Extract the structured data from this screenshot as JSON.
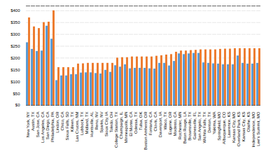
{
  "chart_data": {
    "type": "bar",
    "categories": [
      "New York, NY",
      "Austin, TX",
      "San Jose, CA",
      "Los Angeles, CA",
      "San Diego, CA",
      "Philadelphia, PA",
      "Lindon, OR",
      "Chico, CA",
      "Sioux Falls, SD",
      "Killeen, TX",
      "Las Cruces, NM",
      "Lubbock, TX",
      "Midland, TX",
      "Huntsville, AL",
      "Reno, NV",
      "Sparks, NV",
      "Sioux City, IA",
      "Toledo, OH",
      "College Station, TX",
      "Champaign, IL",
      "Minneapolis, MN",
      "El Monte, CA",
      "Odessa, TX",
      "Tulsa, OK",
      "Boston Amherst, OR",
      "Fontana, CA",
      "Clovis, CA",
      "Davenport, IA",
      "Waco, TX",
      "Eugene, OR",
      "Modesto, CA",
      "Rochester, MN",
      "Baton Rouge, LA",
      "Brownsville, TX",
      "Gainesville, FL",
      "San Angelo, TX",
      "Wichita Falls, TX",
      "Denton, TX",
      "Yakima, WA",
      "Springfield, MO",
      "Albuquerque, CO",
      "Lawrence, KS",
      "Kansas City, MO",
      "Overland Park, KS",
      "Kansas City, KS",
      "Olathe, KS",
      "Independence, MO",
      "Lee's Summit, MO"
    ],
    "series": [
      {
        "color": "#5b9bd5",
        "values": [
          265,
          237,
          228,
          230,
          335,
          280,
          105,
          125,
          125,
          130,
          130,
          137,
          138,
          138,
          135,
          133,
          148,
          140,
          168,
          162,
          172,
          155,
          157,
          157,
          157,
          155,
          154,
          178,
          178,
          167,
          186,
          218,
          215,
          218,
          220,
          220,
          180,
          178,
          176,
          175,
          172,
          172,
          172,
          209,
          178,
          175,
          175,
          178
        ]
      },
      {
        "color": "#ed7d31",
        "values": [
          370,
          332,
          325,
          350,
          352,
          400,
          160,
          160,
          160,
          160,
          175,
          176,
          178,
          178,
          178,
          178,
          178,
          178,
          200,
          202,
          202,
          205,
          205,
          205,
          205,
          205,
          208,
          210,
          213,
          215,
          225,
          230,
          230,
          232,
          233,
          235,
          235,
          235,
          235,
          237,
          238,
          238,
          240,
          240,
          240,
          240,
          240,
          240
        ]
      }
    ],
    "ylim": [
      0,
      420
    ],
    "yticks": [
      {
        "value": 0,
        "label": "$0"
      },
      {
        "value": 50,
        "label": "$50"
      },
      {
        "value": 100,
        "label": "$100"
      },
      {
        "value": 150,
        "label": "$150"
      },
      {
        "value": 200,
        "label": "$200"
      },
      {
        "value": 250,
        "label": "$250"
      },
      {
        "value": 300,
        "label": "$300"
      },
      {
        "value": 350,
        "label": "$350"
      },
      {
        "value": 400,
        "label": "$400"
      }
    ],
    "grid": true
  }
}
